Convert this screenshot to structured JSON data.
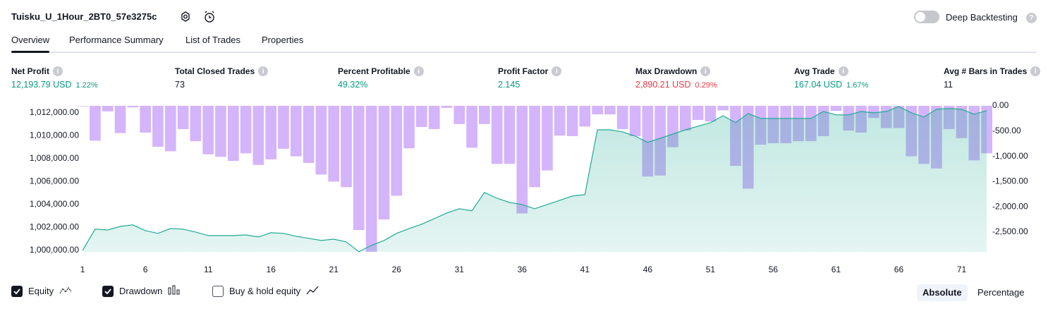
{
  "header": {
    "title": "Tuisku_U_1Hour_2BT0_57e3275c",
    "deep_backtesting": {
      "label": "Deep Backtesting",
      "enabled": false
    }
  },
  "tabs": {
    "items": [
      "Overview",
      "Performance Summary",
      "List of Trades",
      "Properties"
    ],
    "active": "Overview"
  },
  "metrics": [
    {
      "label": "Net Profit",
      "value": "12,193.79 USD",
      "pct": "1.22%",
      "color": "#089981"
    },
    {
      "label": "Total Closed Trades",
      "value": "73",
      "color": "#131722"
    },
    {
      "label": "Percent Profitable",
      "value": "49.32%",
      "color": "#089981"
    },
    {
      "label": "Profit Factor",
      "value": "2.145",
      "color": "#089981"
    },
    {
      "label": "Max Drawdown",
      "value": "2,890.21 USD",
      "pct": "0.29%",
      "color": "#f23645"
    },
    {
      "label": "Avg Trade",
      "value": "167.04 USD",
      "pct": "1.67%",
      "color": "#089981"
    },
    {
      "label": "Avg # Bars in Trades",
      "value": "11",
      "color": "#131722"
    }
  ],
  "chart_data": {
    "type": "combo",
    "x": [
      1,
      2,
      3,
      4,
      5,
      6,
      7,
      8,
      9,
      10,
      11,
      12,
      13,
      14,
      15,
      16,
      17,
      18,
      19,
      20,
      21,
      22,
      23,
      24,
      25,
      26,
      27,
      28,
      29,
      30,
      31,
      32,
      33,
      34,
      35,
      36,
      37,
      38,
      39,
      40,
      41,
      42,
      43,
      44,
      45,
      46,
      47,
      48,
      49,
      50,
      51,
      52,
      53,
      54,
      55,
      56,
      57,
      58,
      59,
      60,
      61,
      62,
      63,
      64,
      65,
      66,
      67,
      68,
      69,
      70,
      71,
      72,
      73
    ],
    "series": [
      {
        "name": "Equity",
        "type": "area",
        "axis": "y",
        "color": "#22ab94",
        "visible": true,
        "values": [
          1000000,
          1001850,
          1001780,
          1002090,
          1002220,
          1001720,
          1001480,
          1001910,
          1001850,
          1001600,
          1001290,
          1001290,
          1001290,
          1001350,
          1001170,
          1001540,
          1001480,
          1001230,
          1001050,
          1000860,
          1000980,
          1000740,
          999880,
          1000430,
          1000860,
          1001480,
          1001910,
          1002280,
          1002770,
          1003260,
          1003630,
          1003450,
          1005050,
          1004550,
          1004180,
          1004000,
          1003630,
          1004000,
          1004370,
          1004740,
          1004860,
          1010520,
          1010520,
          1010340,
          1009970,
          1009420,
          1009780,
          1010150,
          1010520,
          1010830,
          1011140,
          1011750,
          1011140,
          1011940,
          1011510,
          1011510,
          1011510,
          1011510,
          1011510,
          1012120,
          1011820,
          1011820,
          1012120,
          1012000,
          1012120,
          1012550,
          1012000,
          1011630,
          1012310,
          1012370,
          1012310,
          1011880,
          1012190
        ]
      },
      {
        "name": "Drawdown",
        "type": "bar",
        "axis": "y2",
        "color": "#d4b4fb",
        "visible": true,
        "values": [
          -10,
          -690,
          -110,
          -540,
          -30,
          -530,
          -810,
          -900,
          -460,
          -700,
          -960,
          -1010,
          -1090,
          -940,
          -1170,
          -1060,
          -850,
          -1000,
          -1130,
          -1360,
          -1500,
          -1610,
          -2460,
          -2890,
          -2250,
          -1780,
          -840,
          -420,
          -460,
          -40,
          -360,
          -830,
          -360,
          -1150,
          -1150,
          -2130,
          -1610,
          -1280,
          -590,
          -600,
          -410,
          -170,
          -170,
          -460,
          -600,
          -1400,
          -1380,
          -820,
          -490,
          -280,
          -310,
          -90,
          -1190,
          -1640,
          -770,
          -740,
          -740,
          -700,
          -700,
          -600,
          -100,
          -490,
          -530,
          -240,
          -440,
          -440,
          -1000,
          -1150,
          -1240,
          -460,
          -640,
          -1080,
          -940
        ]
      }
    ],
    "xlim": [
      0.6,
      72.6
    ],
    "xticks": [
      1,
      6,
      11,
      16,
      21,
      26,
      31,
      36,
      41,
      46,
      51,
      56,
      61,
      66,
      71
    ],
    "ylim": [
      999870,
      1012610
    ],
    "yticks": [
      {
        "value": 1000000,
        "label": "1,000,000.00"
      },
      {
        "value": 1002000,
        "label": "1,002,000.00"
      },
      {
        "value": 1004000,
        "label": "1,004,000.00"
      },
      {
        "value": 1006000,
        "label": "1,006,000.00"
      },
      {
        "value": 1008000,
        "label": "1,008,000.00"
      },
      {
        "value": 1010000,
        "label": "1,010,000.00"
      },
      {
        "value": 1012000,
        "label": "1,012,000.00"
      }
    ],
    "y2lim": [
      -2891,
      0
    ],
    "y2ticks": [
      {
        "value": 0,
        "label": "0.00"
      },
      {
        "value": -500,
        "label": "-500.00"
      },
      {
        "value": -1000,
        "label": "-1,000.00"
      },
      {
        "value": -1500,
        "label": "-1,500.00"
      },
      {
        "value": -2000,
        "label": "-2,000.00"
      },
      {
        "value": -2500,
        "label": "-2,500.00"
      }
    ]
  },
  "controls": {
    "buy_hold": {
      "label": "Buy & hold equity",
      "checked": false
    },
    "scale_modes": [
      "Absolute",
      "Percentage"
    ],
    "active_scale": "Absolute"
  }
}
